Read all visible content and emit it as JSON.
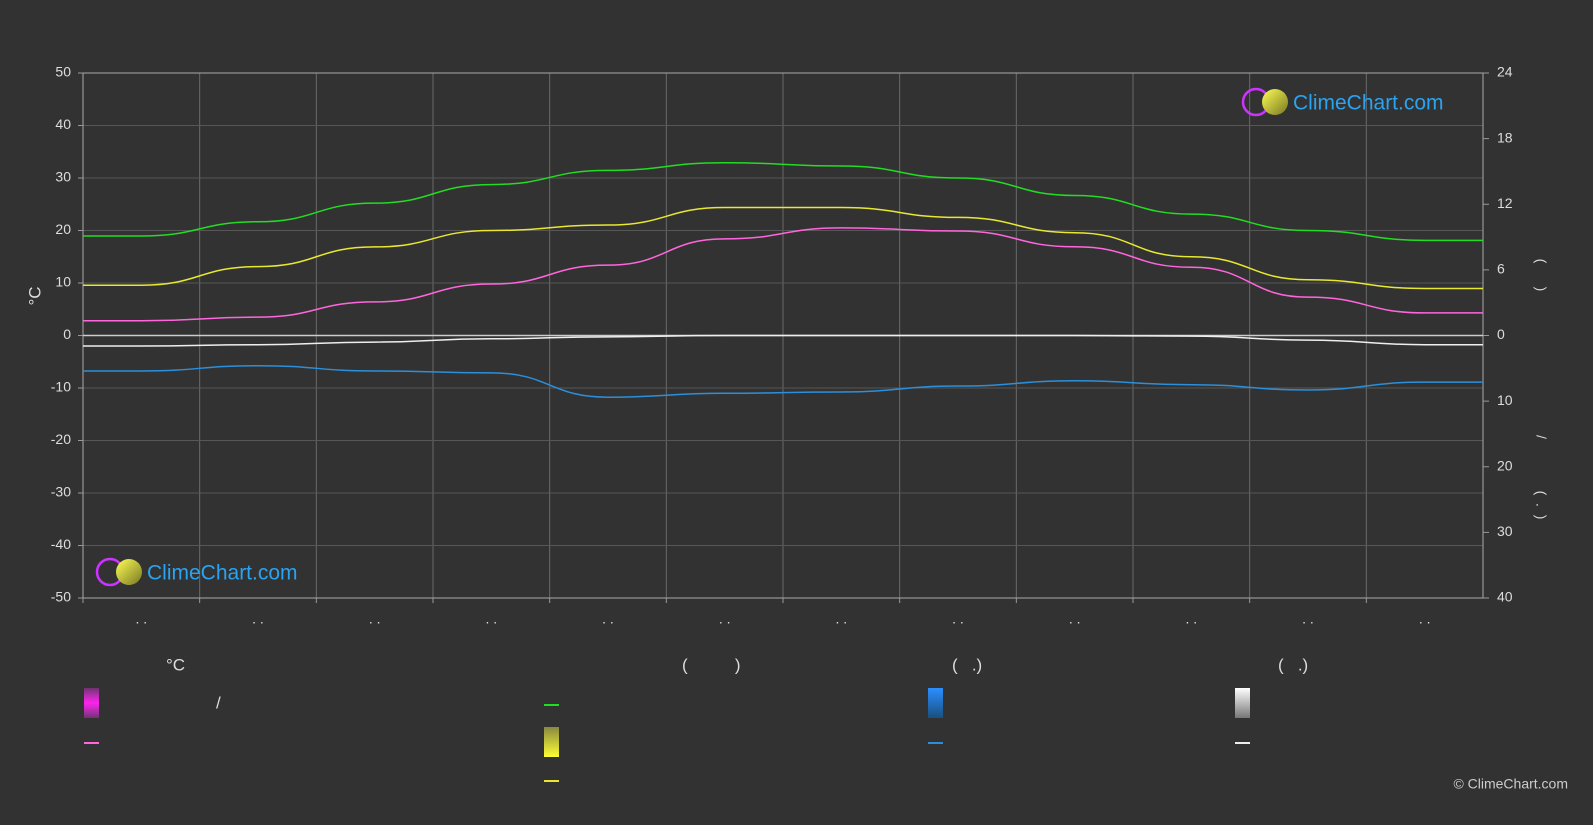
{
  "chart_data": {
    "type": "line",
    "categories": [
      ". .",
      ". .",
      ". .",
      ". .",
      ". .",
      ". .",
      ". .",
      ". .",
      ". .",
      ". .",
      ". .",
      ". ."
    ],
    "ylabel": "°C",
    "ylim": [
      -50,
      50
    ],
    "yticks": [
      -50,
      -40,
      -30,
      -20,
      -10,
      0,
      10,
      20,
      30,
      40,
      50
    ],
    "y2lim": [
      -24,
      24
    ],
    "y2ticks": [
      0,
      6,
      12,
      18,
      24
    ],
    "y3lim": [
      40,
      -40
    ],
    "y3ticks": [
      10,
      20,
      30,
      40
    ],
    "y2labels": [
      "(      )",
      "/",
      "(  .  )"
    ],
    "grid": true,
    "series": [
      {
        "color": "#22dd22",
        "axis": "y2",
        "values": [
          9.1,
          10.4,
          12.1,
          13.8,
          15.1,
          15.8,
          15.5,
          14.4,
          12.8,
          11.1,
          9.6,
          8.7
        ]
      },
      {
        "color": "#e8e830",
        "axis": "y2",
        "values": [
          4.6,
          6.3,
          8.1,
          9.6,
          10.1,
          11.7,
          11.7,
          10.8,
          9.4,
          7.2,
          5.1,
          4.3
        ]
      },
      {
        "color": "#ff66dd",
        "values": [
          2.8,
          3.5,
          6.4,
          9.8,
          13.4,
          18.4,
          20.5,
          19.9,
          16.9,
          13.0,
          7.3,
          4.3
        ]
      },
      {
        "color": "#2b8fdc",
        "axis": "y3",
        "values": [
          5.4,
          4.6,
          5.4,
          5.7,
          9.4,
          8.8,
          8.6,
          7.7,
          6.9,
          7.5,
          8.3,
          7.1
        ]
      },
      {
        "color": "#eeeeee",
        "axis": "y3",
        "values": [
          1.6,
          1.4,
          1.0,
          0.5,
          0.2,
          0,
          0,
          0,
          0,
          0.1,
          0.7,
          1.4
        ]
      }
    ],
    "legend": {
      "headers": [
        "°C",
        "(          )",
        "(   .)",
        "(   .)"
      ],
      "slash": "/"
    },
    "logo": "ClimeChart.com",
    "copyright": "© ClimeChart.com"
  }
}
